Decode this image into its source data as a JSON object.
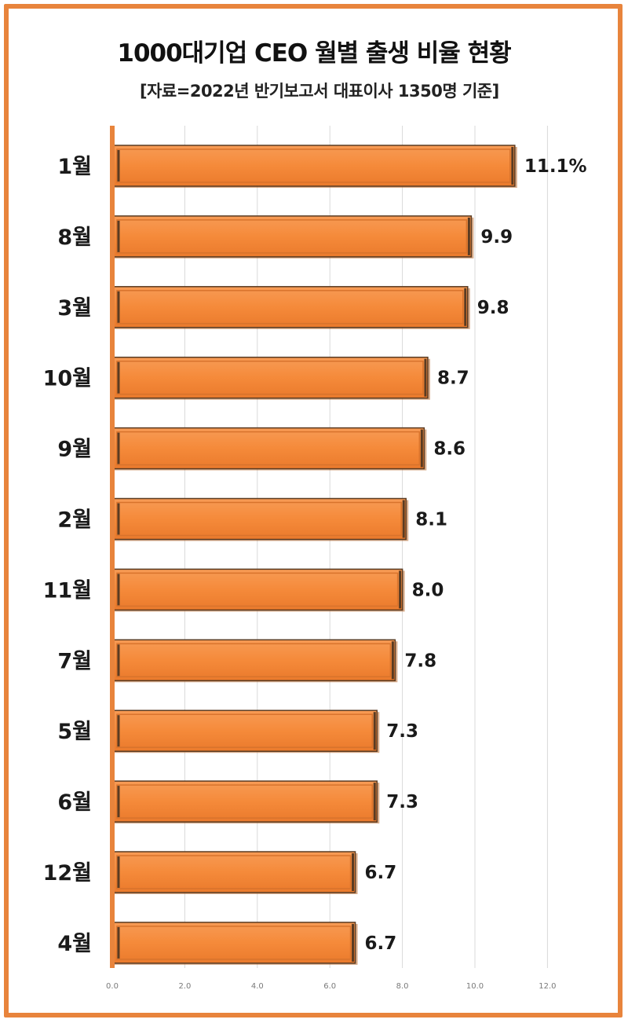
{
  "colors": {
    "frame": "#e8843c",
    "bar_fill": "#f58a3a",
    "bar_edge": "#5a3b22",
    "axis_line": "#e8843c",
    "grid": "#d9d9d9"
  },
  "chart_data": {
    "type": "bar",
    "orientation": "horizontal",
    "title": "1000대기업 CEO 월별 출생 비율 현황",
    "subtitle": "[자료=2022년 반기보고서 대표이사 1350명 기준]",
    "categories": [
      "1월",
      "8월",
      "3월",
      "10월",
      "9월",
      "2월",
      "11월",
      "7월",
      "5월",
      "6월",
      "12월",
      "4월"
    ],
    "values": [
      11.1,
      9.9,
      9.8,
      8.7,
      8.6,
      8.1,
      8.0,
      7.8,
      7.3,
      7.3,
      6.7,
      6.7
    ],
    "value_labels": [
      "11.1%",
      "9.9",
      "9.8",
      "8.7",
      "8.6",
      "8.1",
      "8.0",
      "7.8",
      "7.3",
      "7.3",
      "6.7",
      "6.7"
    ],
    "xlim": [
      0,
      12
    ],
    "xticks": [
      "0.0",
      "2.0",
      "4.0",
      "6.0",
      "8.0",
      "10.0",
      "12.0"
    ],
    "grid": true,
    "legend": "none"
  }
}
